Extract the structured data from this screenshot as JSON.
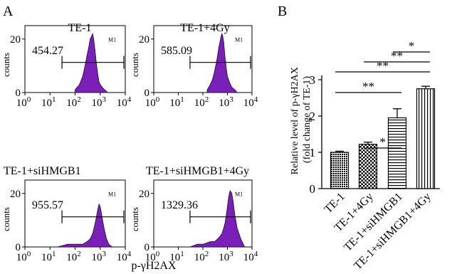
{
  "panel_a": {
    "letter": "A",
    "y_axis_label": "counts",
    "x_axis_label": "p-γH2AX",
    "y_ticks": [
      "0",
      "20"
    ],
    "x_ticks": [
      {
        "base": "10",
        "exp": "0"
      },
      {
        "base": "10",
        "exp": "1"
      },
      {
        "base": "10",
        "exp": "2"
      },
      {
        "base": "10",
        "exp": "3"
      },
      {
        "base": "10",
        "exp": "4"
      }
    ],
    "marker_label": "M1",
    "plots": [
      {
        "title": "TE-1",
        "value": "454.27"
      },
      {
        "title": "TE-1+4Gy",
        "value": "585.09"
      },
      {
        "title": "TE-1+siHMGB1",
        "value": "955.57"
      },
      {
        "title": "TE-1+siHMGB1+4Gy",
        "value": "1329.36"
      }
    ]
  },
  "panel_b": {
    "letter": "B",
    "ylabel_line1": "Relative level of p-γH2AX",
    "ylabel_line2": "(fold change of TE-1)",
    "y_ticks": [
      "0",
      "1",
      "2",
      "3"
    ],
    "significance": [
      {
        "from": 1,
        "to": 2,
        "label": "*"
      },
      {
        "from": 0,
        "to": 2,
        "label": "**"
      },
      {
        "from": 0,
        "to": 3,
        "label": "**"
      },
      {
        "from": 1,
        "to": 3,
        "label": "**"
      },
      {
        "from": 2,
        "to": 3,
        "label": "*"
      }
    ]
  },
  "chart_data": [
    {
      "type": "area",
      "title": "TE-1",
      "xlabel": "p-γH2AX",
      "ylabel": "counts",
      "x_scale": "log",
      "xlim": [
        1,
        10000
      ],
      "ylim": [
        0,
        25
      ],
      "gate": {
        "name": "M1",
        "range": [
          30,
          10000
        ]
      },
      "mean": 454.27,
      "color": "#7a1fb8",
      "x": [
        100,
        150,
        200,
        250,
        300,
        350,
        400,
        450,
        500,
        550,
        600,
        650,
        700,
        800,
        900,
        1000,
        1200,
        1500,
        2000
      ],
      "y": [
        1,
        3,
        6,
        10,
        14,
        17,
        20,
        21,
        22,
        20,
        17,
        14,
        11,
        7,
        4,
        3,
        2,
        1,
        0
      ]
    },
    {
      "type": "area",
      "title": "TE-1+4Gy",
      "xlabel": "p-γH2AX",
      "ylabel": "counts",
      "x_scale": "log",
      "xlim": [
        1,
        10000
      ],
      "ylim": [
        0,
        25
      ],
      "gate": {
        "name": "M1",
        "range": [
          30,
          10000
        ]
      },
      "mean": 585.09,
      "color": "#7a1fb8",
      "x": [
        150,
        200,
        250,
        300,
        350,
        400,
        450,
        500,
        550,
        600,
        650,
        700,
        750,
        800,
        900,
        1000,
        1200,
        1500,
        2000,
        2500
      ],
      "y": [
        1,
        3,
        5,
        8,
        11,
        14,
        17,
        19,
        21,
        22,
        21,
        19,
        16,
        13,
        9,
        6,
        4,
        2,
        1,
        0
      ]
    },
    {
      "type": "area",
      "title": "TE-1+siHMGB1",
      "xlabel": "p-γH2AX",
      "ylabel": "counts",
      "x_scale": "log",
      "xlim": [
        1,
        10000
      ],
      "ylim": [
        0,
        25
      ],
      "gate": {
        "name": "M1",
        "range": [
          30,
          10000
        ]
      },
      "mean": 955.57,
      "color": "#7a1fb8",
      "x": [
        20,
        50,
        100,
        200,
        300,
        400,
        500,
        600,
        700,
        800,
        900,
        1000,
        1100,
        1300,
        1500,
        1800,
        2200,
        3000
      ],
      "y": [
        0,
        1,
        1,
        1,
        2,
        3,
        5,
        8,
        11,
        14,
        16,
        15,
        13,
        9,
        6,
        3,
        1,
        0
      ]
    },
    {
      "type": "area",
      "title": "TE-1+siHMGB1+4Gy",
      "xlabel": "p-γH2AX",
      "ylabel": "counts",
      "x_scale": "log",
      "xlim": [
        1,
        10000
      ],
      "ylim": [
        0,
        25
      ],
      "gate": {
        "name": "M1",
        "range": [
          30,
          10000
        ]
      },
      "mean": 1329.36,
      "color": "#7a1fb8",
      "x": [
        30,
        60,
        100,
        200,
        300,
        400,
        500,
        600,
        700,
        800,
        900,
        1000,
        1100,
        1200,
        1300,
        1500,
        1700,
        2000,
        2500,
        3500,
        5000
      ],
      "y": [
        0,
        1,
        1,
        2,
        2,
        3,
        4,
        5,
        7,
        9,
        12,
        15,
        18,
        20,
        21,
        20,
        17,
        12,
        7,
        3,
        0
      ]
    },
    {
      "type": "bar",
      "categories": [
        "TE-1",
        "TE-1+4Gy",
        "TE-1+siHMGB1",
        "TE-1+siHMGB1+4Gy"
      ],
      "values": [
        1.0,
        1.22,
        1.95,
        2.75
      ],
      "errors": [
        0.03,
        0.06,
        0.25,
        0.07
      ],
      "patterns": [
        "dots",
        "checker",
        "hlines",
        "vlines"
      ],
      "ylabel": "Relative level of p-γH2AX (fold change of TE-1)",
      "ylim": [
        0,
        3
      ]
    }
  ]
}
